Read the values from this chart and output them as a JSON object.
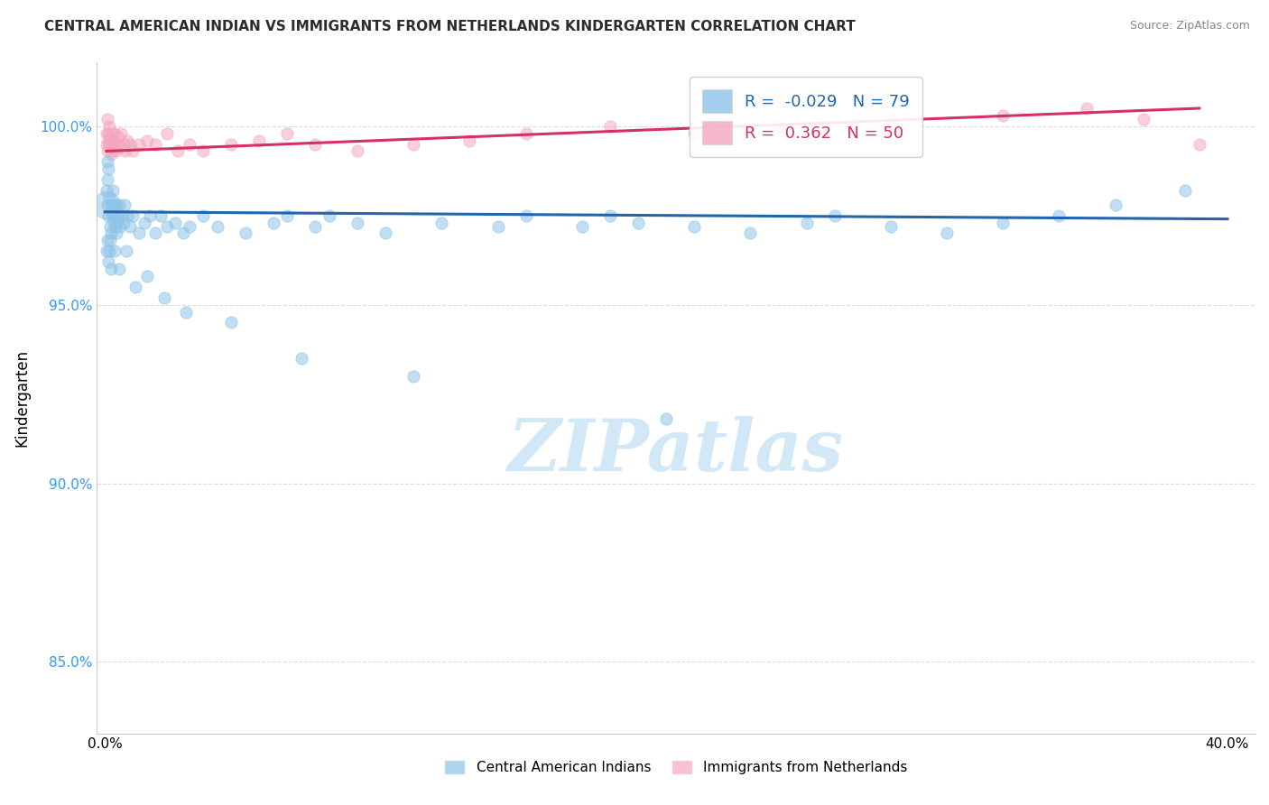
{
  "title": "CENTRAL AMERICAN INDIAN VS IMMIGRANTS FROM NETHERLANDS KINDERGARTEN CORRELATION CHART",
  "source": "Source: ZipAtlas.com",
  "ylabel": "Kindergarten",
  "ylim": [
    83.0,
    101.8
  ],
  "xlim": [
    -0.3,
    41.0
  ],
  "yticks": [
    85.0,
    90.0,
    95.0,
    100.0
  ],
  "blue_R": -0.029,
  "blue_N": 79,
  "pink_R": 0.362,
  "pink_N": 50,
  "blue_color": "#8ec4e8",
  "pink_color": "#f4a8bf",
  "blue_line_color": "#2166ac",
  "pink_line_color": "#d63060",
  "legend_label_blue": "Central American Indians",
  "legend_label_pink": "Immigrants from Netherlands",
  "blue_points_x": [
    0.05,
    0.08,
    0.1,
    0.1,
    0.12,
    0.13,
    0.15,
    0.18,
    0.2,
    0.22,
    0.25,
    0.28,
    0.3,
    0.32,
    0.35,
    0.38,
    0.4,
    0.42,
    0.45,
    0.48,
    0.5,
    0.55,
    0.6,
    0.65,
    0.7,
    0.8,
    0.9,
    1.0,
    1.2,
    1.4,
    1.6,
    1.8,
    2.0,
    2.2,
    2.5,
    2.8,
    3.0,
    3.5,
    4.0,
    5.0,
    6.0,
    6.5,
    7.5,
    8.0,
    9.0,
    10.0,
    12.0,
    14.0,
    15.0,
    17.0,
    18.0,
    19.0,
    21.0,
    23.0,
    25.0,
    26.0,
    28.0,
    30.0,
    32.0,
    34.0,
    36.0,
    38.5,
    0.06,
    0.09,
    0.11,
    0.14,
    0.17,
    0.23,
    0.33,
    0.52,
    0.75,
    1.1,
    1.5,
    2.1,
    2.9,
    4.5,
    7.0,
    11.0,
    20.0
  ],
  "blue_points_y": [
    98.2,
    97.8,
    99.0,
    98.5,
    97.5,
    98.8,
    98.0,
    97.2,
    97.8,
    97.0,
    97.5,
    98.2,
    97.3,
    97.8,
    97.5,
    97.2,
    97.8,
    97.0,
    97.3,
    97.5,
    97.8,
    97.2,
    97.5,
    97.3,
    97.8,
    97.5,
    97.2,
    97.5,
    97.0,
    97.3,
    97.5,
    97.0,
    97.5,
    97.2,
    97.3,
    97.0,
    97.2,
    97.5,
    97.2,
    97.0,
    97.3,
    97.5,
    97.2,
    97.5,
    97.3,
    97.0,
    97.3,
    97.2,
    97.5,
    97.2,
    97.5,
    97.3,
    97.2,
    97.0,
    97.3,
    97.5,
    97.2,
    97.0,
    97.3,
    97.5,
    97.8,
    98.2,
    96.5,
    96.8,
    96.2,
    96.5,
    96.8,
    96.0,
    96.5,
    96.0,
    96.5,
    95.5,
    95.8,
    95.2,
    94.8,
    94.5,
    93.5,
    93.0,
    91.8
  ],
  "pink_points_x": [
    0.05,
    0.07,
    0.09,
    0.1,
    0.11,
    0.12,
    0.14,
    0.16,
    0.18,
    0.2,
    0.22,
    0.25,
    0.28,
    0.3,
    0.33,
    0.36,
    0.4,
    0.44,
    0.48,
    0.52,
    0.58,
    0.65,
    0.72,
    0.8,
    0.9,
    1.0,
    1.2,
    1.5,
    1.8,
    2.2,
    2.6,
    3.0,
    3.5,
    4.5,
    5.5,
    6.5,
    7.5,
    9.0,
    11.0,
    13.0,
    15.0,
    18.0,
    21.0,
    24.0,
    28.0,
    32.0,
    35.0,
    37.0,
    39.0,
    0.15
  ],
  "pink_points_y": [
    99.5,
    99.8,
    100.2,
    99.3,
    99.6,
    99.8,
    100.0,
    99.5,
    99.7,
    99.2,
    99.5,
    99.8,
    99.3,
    99.6,
    99.5,
    99.8,
    99.3,
    99.5,
    99.7,
    99.5,
    99.8,
    99.5,
    99.3,
    99.6,
    99.5,
    99.3,
    99.5,
    99.6,
    99.5,
    99.8,
    99.3,
    99.5,
    99.3,
    99.5,
    99.6,
    99.8,
    99.5,
    99.3,
    99.5,
    99.6,
    99.8,
    100.0,
    99.8,
    100.0,
    100.2,
    100.3,
    100.5,
    100.2,
    99.5,
    99.5
  ],
  "blue_line_x": [
    0.0,
    40.0
  ],
  "blue_line_y": [
    97.6,
    97.4
  ],
  "pink_line_x": [
    0.05,
    39.0
  ],
  "pink_line_y": [
    99.3,
    100.5
  ],
  "large_blue_x": [
    0.05
  ],
  "large_blue_y": [
    97.8
  ],
  "large_blue_size": 22,
  "marker_size": 90
}
